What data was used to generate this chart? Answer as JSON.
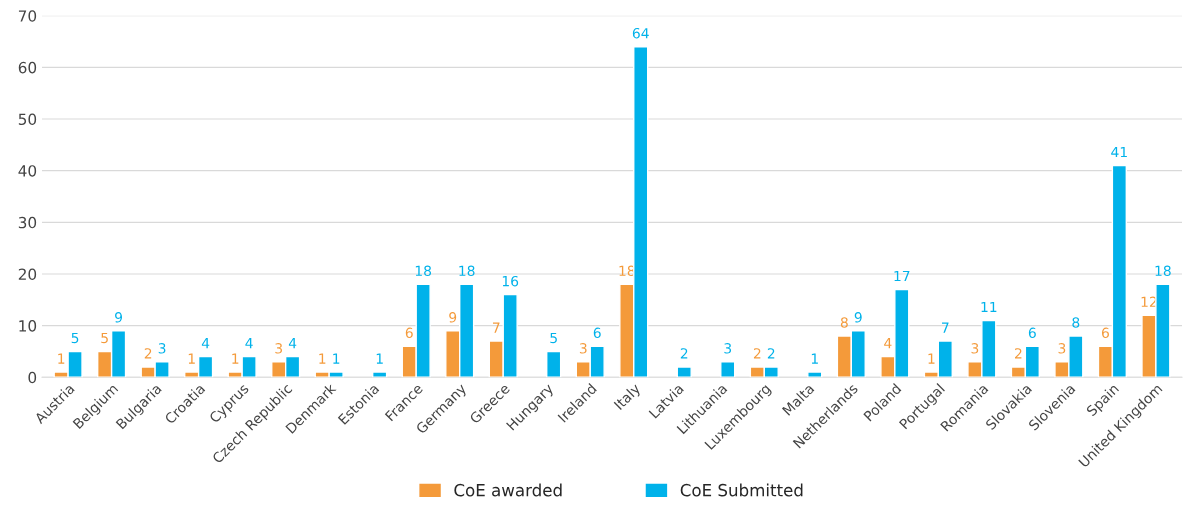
{
  "chart_data": {
    "type": "bar",
    "categories": [
      "Austria",
      "Belgium",
      "Bulgaria",
      "Croatia",
      "Cyprus",
      "Czech Republic",
      "Denmark",
      "Estonia",
      "France",
      "Germany",
      "Greece",
      "Hungary",
      "Ireland",
      "Italy",
      "Latvia",
      "Lithuania",
      "Luxembourg",
      "Malta",
      "Netherlands",
      "Poland",
      "Portugal",
      "Romania",
      "Slovakia",
      "Slovenia",
      "Spain",
      "United Kingdom"
    ],
    "series": [
      {
        "name": "CoE awarded",
        "color": "#f49a3a",
        "values": [
          1,
          5,
          2,
          1,
          1,
          3,
          1,
          null,
          6,
          9,
          7,
          null,
          3,
          18,
          null,
          null,
          2,
          null,
          8,
          4,
          1,
          3,
          2,
          3,
          6,
          12
        ]
      },
      {
        "name": "CoE Submitted",
        "color": "#00b2ea",
        "values": [
          5,
          9,
          3,
          4,
          4,
          4,
          1,
          1,
          18,
          18,
          16,
          5,
          6,
          64,
          2,
          3,
          2,
          1,
          9,
          17,
          7,
          11,
          6,
          8,
          41,
          18
        ]
      }
    ],
    "ylim": [
      0,
      70
    ],
    "yticks": [
      0,
      10,
      20,
      30,
      40,
      50,
      60,
      70
    ],
    "grid": "y",
    "legend": "bottom",
    "data_labels": true
  }
}
